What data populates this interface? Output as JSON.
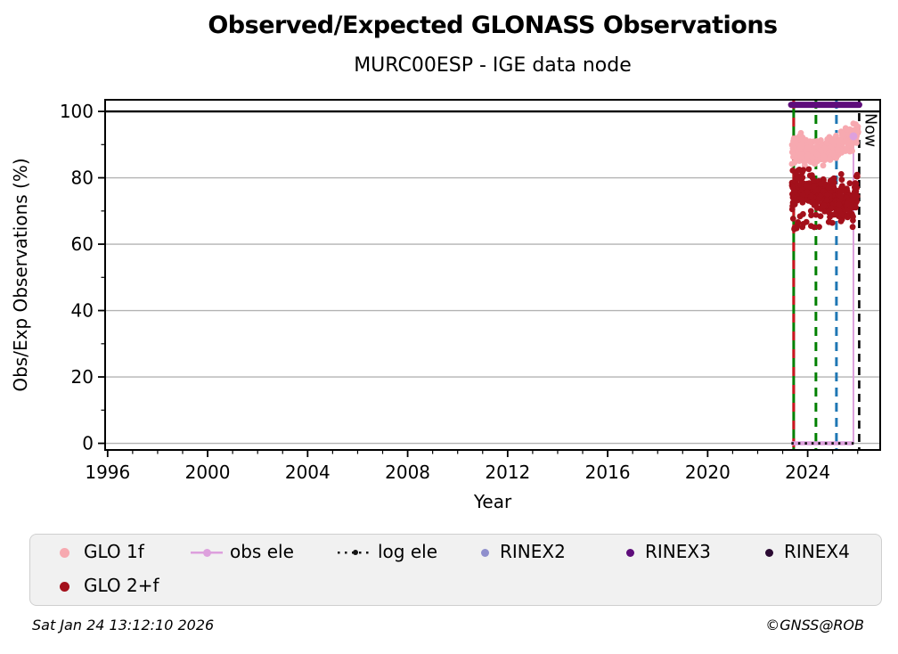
{
  "chart_data": {
    "type": "scatter",
    "title": "Observed/Expected GLONASS Observations",
    "subtitle": "MURC00ESP - IGE data node",
    "xlabel": "Year",
    "ylabel": "Obs/Exp Observations (%)",
    "xlim": [
      1995.9,
      2026.9
    ],
    "ylim": [
      -2,
      103.5
    ],
    "x_major_ticks": [
      1996,
      2000,
      2004,
      2008,
      2012,
      2016,
      2020,
      2024
    ],
    "x_minor_tick_range": [
      1996,
      2026
    ],
    "x_minor_tick_step": 1,
    "y_major_ticks": [
      0,
      20,
      40,
      60,
      80,
      100
    ],
    "y_minor_ticks": [
      10,
      30,
      50,
      70,
      90
    ],
    "grid": "horizontal-only",
    "grid_color": "#b3b3b3",
    "expected_reference_line": {
      "y": 100,
      "color": "#000000"
    },
    "series": [
      {
        "name": "GLO 1f",
        "type": "scatter-cloud",
        "color": "#f7a9b0",
        "point_radius": 3.4,
        "count": 400,
        "seed": 42,
        "x_range": [
          2023.37,
          2026.02
        ],
        "trend": [
          [
            2023.37,
            88.8
          ],
          [
            2023.8,
            88.2
          ],
          [
            2024.2,
            87.3
          ],
          [
            2024.6,
            87.8
          ],
          [
            2025.0,
            88.8
          ],
          [
            2025.35,
            90.0
          ],
          [
            2025.7,
            91.8
          ],
          [
            2026.02,
            93.8
          ]
        ],
        "y_jitter_sigma": 1.8,
        "y_clip": [
          80.5,
          96.5
        ]
      },
      {
        "name": "GLO 2+f",
        "type": "scatter-cloud",
        "color": "#a3101b",
        "point_radius": 3.4,
        "count": 460,
        "seed": 7,
        "x_range": [
          2023.37,
          2026.0
        ],
        "trend": [
          [
            2023.37,
            76.5
          ],
          [
            2023.75,
            77.5
          ],
          [
            2024.1,
            76.2
          ],
          [
            2024.5,
            75.2
          ],
          [
            2024.9,
            74.6
          ],
          [
            2025.2,
            73.2
          ],
          [
            2025.55,
            71.8
          ],
          [
            2025.85,
            72.6
          ],
          [
            2026.0,
            77.5
          ]
        ],
        "y_jitter_sigma": 2.4,
        "y_clip": [
          63.5,
          83.5
        ],
        "outliers": {
          "count": 26,
          "seed": 13,
          "y_range": [
            64.5,
            70.5
          ]
        }
      }
    ],
    "rinex3_availability_bar": {
      "label": "RINEX3",
      "y": 102,
      "x_start": 2023.34,
      "x_end": 2026.06,
      "color": "#5e0d7b",
      "thickness": 7
    },
    "obs_ele_line": {
      "label": "obs ele",
      "color": "#dda0dd",
      "baseline_value": 0,
      "x_start": 2023.35,
      "x_end": 2025.83,
      "final_point": {
        "x": 2025.83,
        "y": 92.5
      }
    },
    "log_ele_line": {
      "label": "log ele",
      "color": "#141414",
      "value": 0,
      "x_start": 2023.35,
      "x_end": 2026.0
    },
    "event_lines": [
      {
        "x": 2023.44,
        "color": "#008000",
        "style": "solid",
        "overlay_color": "#cc1420",
        "overlay_style": "dashed"
      },
      {
        "x": 2024.33,
        "color": "#008000",
        "style": "dashed"
      },
      {
        "x": 2025.15,
        "color": "#1f77b4",
        "style": "dashed"
      }
    ],
    "now_marker": {
      "x": 2026.06,
      "label": "Now",
      "color": "#000000",
      "style": "dashed"
    },
    "legend": {
      "position": "below-chart",
      "rows": 2,
      "items": [
        {
          "label": "GLO 1f",
          "marker": "dot",
          "color": "#f7a9b0",
          "row": 1
        },
        {
          "label": "obs ele",
          "marker": "line-dot",
          "color": "#dda0dd",
          "row": 1
        },
        {
          "label": "log ele",
          "marker": "dotted-line-dot",
          "color": "#141414",
          "row": 1
        },
        {
          "label": "RINEX2",
          "marker": "dot-small",
          "color": "#8f8fcd",
          "row": 1
        },
        {
          "label": "RINEX3",
          "marker": "dot-small",
          "color": "#5e0d7b",
          "row": 1
        },
        {
          "label": "RINEX4",
          "marker": "dot-small",
          "color": "#2b0a33",
          "row": 1
        },
        {
          "label": "GLO 2+f",
          "marker": "dot",
          "color": "#a3101b",
          "row": 2
        }
      ]
    }
  },
  "footer": {
    "timestamp": "Sat Jan 24 13:12:10 2026",
    "copyright": "©GNSS@ROB"
  }
}
